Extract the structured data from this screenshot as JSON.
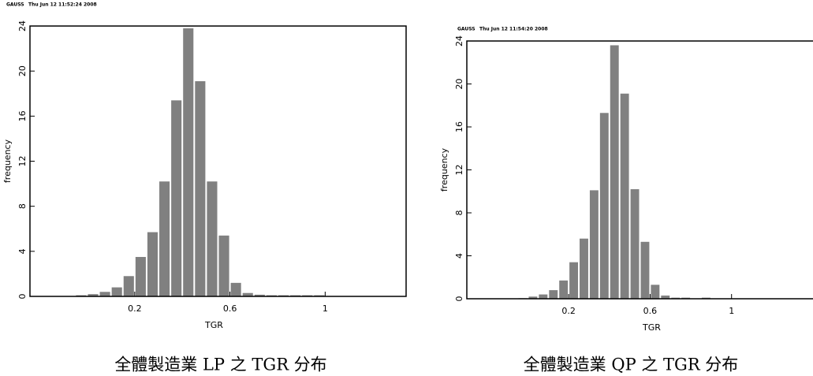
{
  "chart_data": [
    {
      "type": "histogram",
      "header": "GAUSS",
      "timestamp": "Thu Jun 12 11:52:24 2008",
      "caption": "全體製造業 LP 之 TGR 分布",
      "xlabel": "TGR",
      "ylabel": "frequency",
      "color": "#808080",
      "bins": [
        -0.05,
        0,
        0.05,
        0.1,
        0.15,
        0.2,
        0.25,
        0.3,
        0.35,
        0.4,
        0.45,
        0.5,
        0.55,
        0.6,
        0.65,
        0.7,
        0.75,
        0.8,
        0.85,
        0.9,
        0.95,
        1.0
      ],
      "values": [
        0.1,
        0.2,
        0.4,
        0.8,
        1.8,
        3.5,
        5.7,
        10.2,
        17.4,
        23.8,
        19.1,
        10.2,
        5.4,
        1.2,
        0.3,
        0.15,
        0.1,
        0.1,
        0.1,
        0.1,
        0.1
      ],
      "xlim": [
        -0.24,
        1.34
      ],
      "xticks": [
        0.2,
        0.6,
        1.0
      ],
      "ylim": [
        0,
        24
      ],
      "yticks": [
        0,
        4,
        8,
        12,
        16,
        20,
        24
      ]
    },
    {
      "type": "histogram",
      "header": "GAUSS",
      "timestamp": "Thu Jun 12 11:54:20 2008",
      "caption": "全體製造業 QP 之 TGR 分布",
      "xlabel": "TGR",
      "ylabel": "frequency",
      "color": "#808080",
      "bins": [
        -0.05,
        0,
        0.05,
        0.1,
        0.15,
        0.2,
        0.25,
        0.3,
        0.35,
        0.4,
        0.45,
        0.5,
        0.55,
        0.6,
        0.65,
        0.7,
        0.75,
        0.8,
        0.85,
        0.9,
        0.95,
        1.0
      ],
      "values": [
        0.05,
        0.2,
        0.4,
        0.8,
        1.7,
        3.4,
        5.6,
        10.1,
        17.3,
        23.6,
        19.1,
        10.2,
        5.3,
        1.3,
        0.3,
        0.1,
        0.1,
        0,
        0.1,
        0,
        0
      ],
      "xlim": [
        -0.3,
        1.4
      ],
      "xticks": [
        0.2,
        0.6,
        1.0
      ],
      "ylim": [
        0,
        24
      ],
      "yticks": [
        0,
        4,
        8,
        12,
        16,
        20,
        24
      ]
    }
  ]
}
